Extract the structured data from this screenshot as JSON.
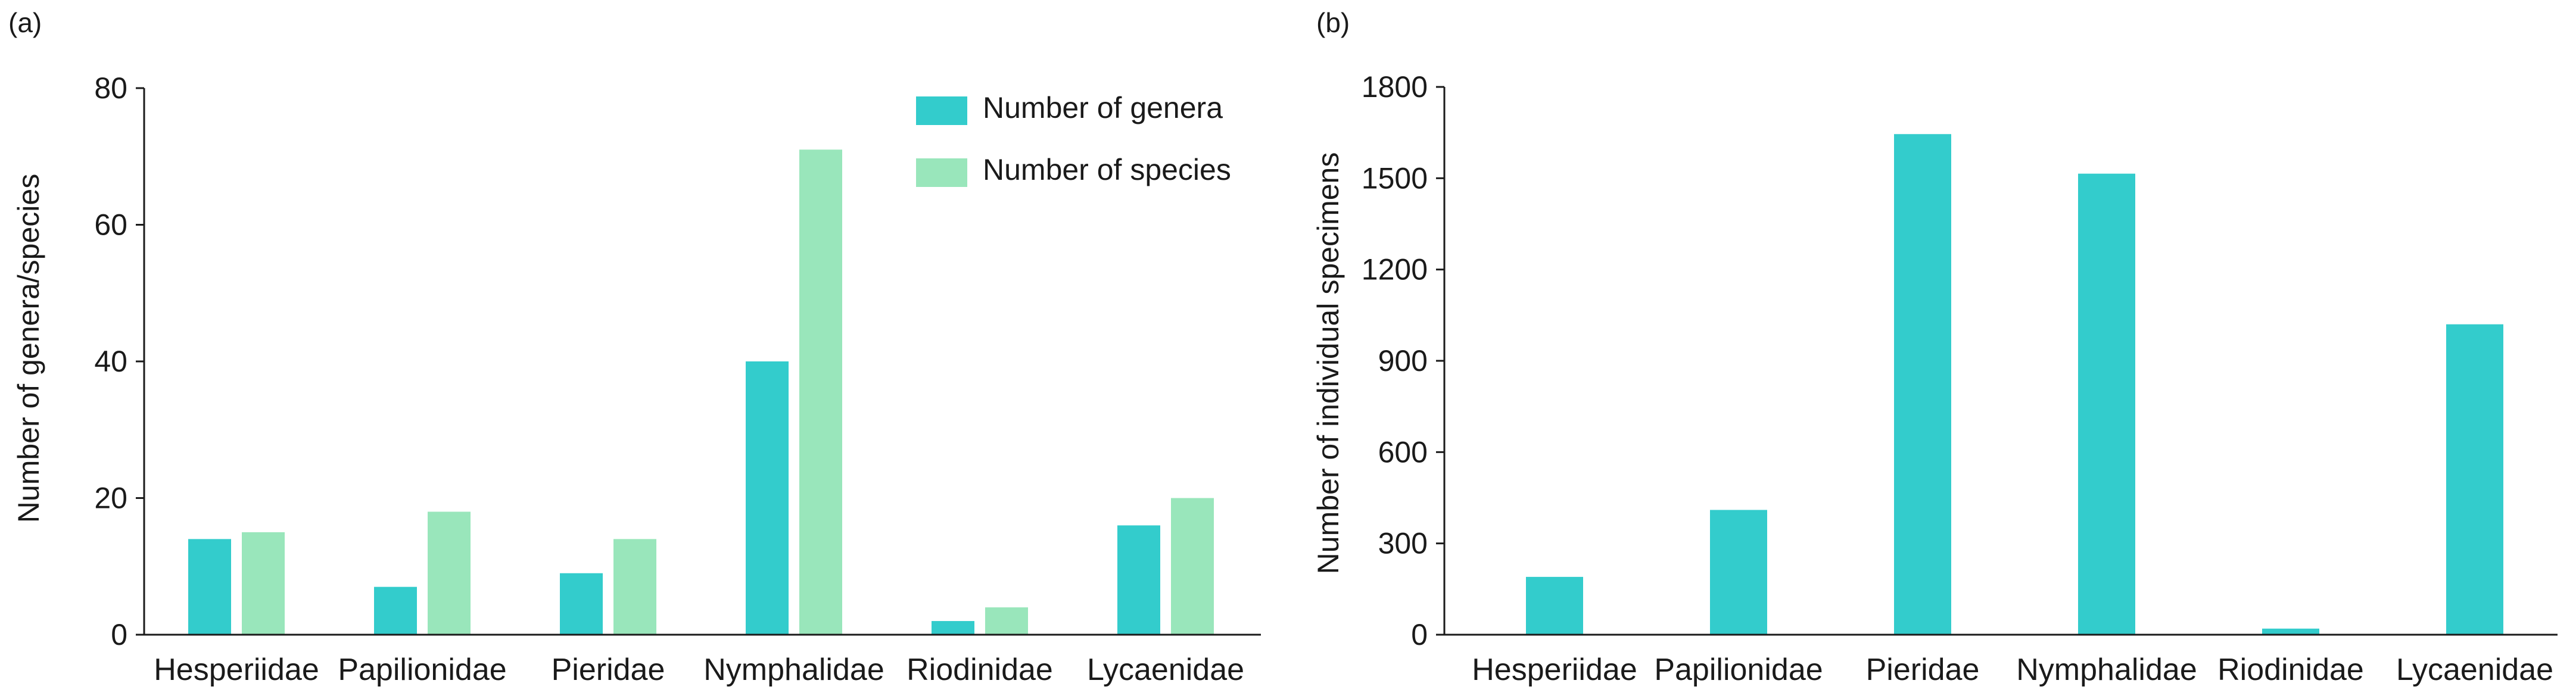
{
  "figure": {
    "panels": [
      "(a)",
      "(b)"
    ]
  },
  "chart_data": [
    {
      "type": "bar",
      "panel": "(a)",
      "categories": [
        "Hesperiidae",
        "Papilionidae",
        "Pieridae",
        "Nymphalidae",
        "Riodinidae",
        "Lycaenidae"
      ],
      "series": [
        {
          "name": "Number of genera",
          "color": "#33cccc",
          "values": [
            14,
            7,
            9,
            40,
            2,
            16
          ]
        },
        {
          "name": "Number of species",
          "color": "#99e6bb",
          "values": [
            15,
            18,
            14,
            71,
            4,
            20
          ]
        }
      ],
      "xlabel": "",
      "ylabel": "Number of genera/species",
      "ylim": [
        0,
        80
      ],
      "yticks": [
        "0",
        "20",
        "40",
        "60",
        "80"
      ],
      "grid": false,
      "legend": "top-right"
    },
    {
      "type": "bar",
      "panel": "(b)",
      "categories": [
        "Hesperiidae",
        "Papilionidae",
        "Pieridae",
        "Nymphalidae",
        "Riodinidae",
        "Lycaenidae"
      ],
      "series": [
        {
          "color": "#33cccc",
          "values": [
            190,
            410,
            1645,
            1515,
            20,
            1020
          ]
        }
      ],
      "xlabel": "",
      "ylabel": "Number of individual specimens",
      "ylim": [
        0,
        1800
      ],
      "yticks": [
        "0",
        "300",
        "600",
        "900",
        "1200",
        "1500",
        "1800"
      ],
      "grid": false,
      "legend": "none"
    }
  ]
}
